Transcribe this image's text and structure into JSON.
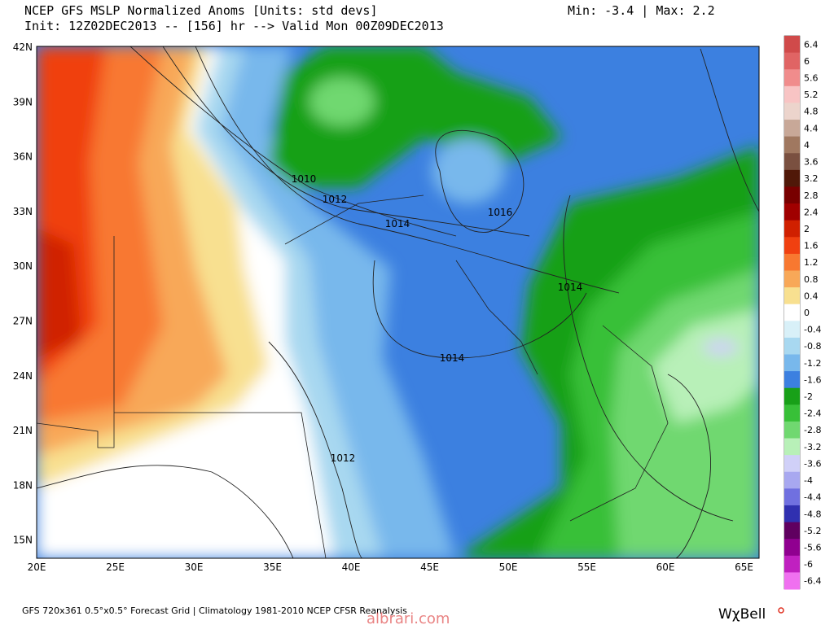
{
  "header": {
    "title": "NCEP GFS MSLP Normalized Anoms [Units: std devs]",
    "range": "Min:  -3.4 | Max:   2.2",
    "init": "Init: 12Z02DEC2013 -- [156] hr --> Valid Mon 00Z09DEC2013"
  },
  "map": {
    "lat_labels": [
      "42N",
      "39N",
      "36N",
      "33N",
      "30N",
      "27N",
      "24N",
      "21N",
      "18N",
      "15N"
    ],
    "lon_labels": [
      "20E",
      "25E",
      "30E",
      "35E",
      "40E",
      "45E",
      "50E",
      "55E",
      "60E",
      "65E"
    ],
    "contour_labels": [
      "1010",
      "1012",
      "1014",
      "1016",
      "1014",
      "1014",
      "1012"
    ]
  },
  "colorbar": {
    "labels": [
      "6.4",
      "6",
      "5.6",
      "5.2",
      "4.8",
      "4.4",
      "4",
      "3.6",
      "3.2",
      "2.8",
      "2.4",
      "2",
      "1.6",
      "1.2",
      "0.8",
      "0.4",
      "0",
      "-0.4",
      "-0.8",
      "-1.2",
      "-1.6",
      "-2",
      "-2.4",
      "-2.8",
      "-3.2",
      "-3.6",
      "-4",
      "-4.4",
      "-4.8",
      "-5.2",
      "-5.6",
      "-6",
      "-6.4"
    ],
    "colors": [
      "#d04a4a",
      "#e06464",
      "#f08c8c",
      "#f8c4c4",
      "#ecd4cc",
      "#c8a898",
      "#a07860",
      "#7a5040",
      "#501808",
      "#780000",
      "#a00000",
      "#d02000",
      "#f04010",
      "#f87830",
      "#f8a858",
      "#f8e090",
      "#ffffff",
      "#d8f0f8",
      "#a8d8f0",
      "#78b8ec",
      "#3c80e0",
      "#18a018",
      "#38c038",
      "#70d870",
      "#b8f0b8",
      "#d0d0f8",
      "#a8a8f0",
      "#7070e0",
      "#3030b0",
      "#600060",
      "#900090",
      "#c020c0",
      "#f070f0"
    ]
  },
  "footer": {
    "grid_info": "GFS 720x361 0.5°x0.5° Forecast Grid | Climatology 1981-2010 NCEP CFSR Reanalysis",
    "brand": "WχBell",
    "watermark": "albrari.com"
  }
}
